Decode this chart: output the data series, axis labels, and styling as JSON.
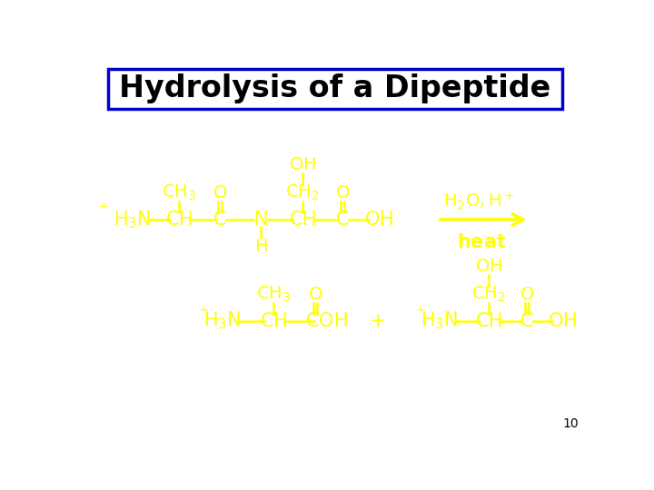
{
  "title": "Hydrolysis of a Dipeptide",
  "title_color": "#000000",
  "title_fontsize": 24,
  "border_color": "#0000CC",
  "bg_color": "#ffffff",
  "chem_color": "#FFFF00",
  "slide_number": "10",
  "slide_num_color": "#000000",
  "slide_num_fontsize": 10
}
